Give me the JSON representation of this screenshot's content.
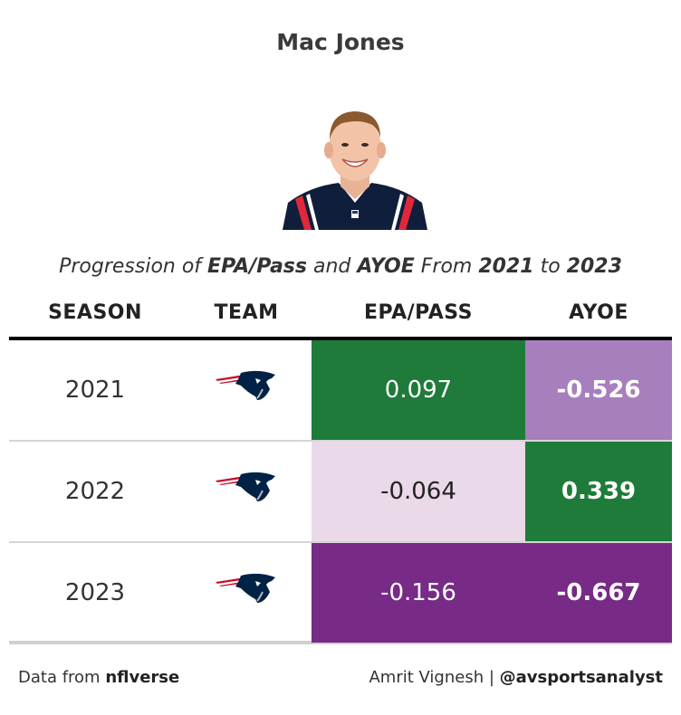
{
  "title": "Mac Jones",
  "subtitle": {
    "pre": "Progression of ",
    "metric1": "EPA/Pass",
    "and": " and ",
    "metric2": "AYOE",
    "from": " From ",
    "start": "2021",
    "to": " to ",
    "end": "2023"
  },
  "headers": {
    "season": "SEASON",
    "team": "TEAM",
    "epa": "EPA/PASS",
    "ayoe": "AYOE"
  },
  "rows": [
    {
      "season": "2021",
      "team_icon": "patriots-logo-icon",
      "epa": "0.097",
      "epa_bg": "#1e7b3a",
      "epa_color": "#ffffff",
      "ayoe": "-0.526",
      "ayoe_bg": "#a77fbd"
    },
    {
      "season": "2022",
      "team_icon": "patriots-logo-icon",
      "epa": "-0.064",
      "epa_bg": "#ead9e9",
      "epa_color": "#222222",
      "ayoe": "0.339",
      "ayoe_bg": "#1e7b3a"
    },
    {
      "season": "2023",
      "team_icon": "patriots-logo-icon",
      "epa": "-0.156",
      "epa_bg": "#772a86",
      "epa_color": "#ffffff",
      "ayoe": "-0.667",
      "ayoe_bg": "#772a86"
    }
  ],
  "footer": {
    "source_prefix": "Data from ",
    "source": "nflverse",
    "author": "Amrit Vignesh | ",
    "handle": "@avsportsanalyst"
  }
}
